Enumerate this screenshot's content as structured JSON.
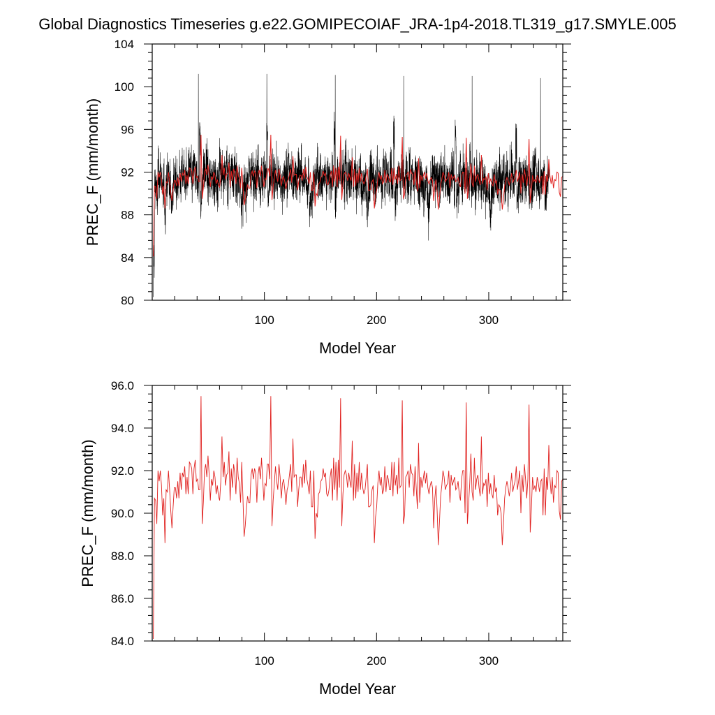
{
  "title": "Global Diagnostics Timeseries g.e22.GOMIPECOIAF_JRA-1p4-2018.TL319_g17.SMYLE.005",
  "colors": {
    "monthly": "#000000",
    "annual": "#e0201e",
    "axis": "#000000"
  },
  "chart_data": [
    {
      "type": "line",
      "title": "Global Diagnostics Timeseries g.e22.GOMIPECOIAF_JRA-1p4-2018.TL319_g17.SMYLE.005",
      "xlabel": "Model Year",
      "ylabel": "PREC_F (mm/month)",
      "xlim": [
        0,
        366
      ],
      "ylim": [
        80,
        104
      ],
      "xticks": [
        100,
        200,
        300
      ],
      "xtick_labels": [
        "100",
        "200",
        "300"
      ],
      "yticks": [
        80,
        84,
        88,
        92,
        96,
        100,
        104
      ],
      "ytick_labels": [
        "80",
        "84",
        "88",
        "92",
        "96",
        "100",
        "104"
      ],
      "grid": false,
      "legend": "none",
      "series": [
        {
          "values_source": "monthly",
          "value_range": [
            80.3,
            101.2
          ],
          "mean": 91.0,
          "spike_years": [
            41,
            102,
            163,
            224,
            285,
            346
          ],
          "spike_peaks": [
            101.2,
            101.2,
            101.1,
            101.0,
            101.0,
            100.8
          ]
        },
        {
          "values_source": "annual"
        }
      ]
    },
    {
      "type": "line",
      "xlabel": "Model Year",
      "ylabel": "PREC_F (mm/month)",
      "xlim": [
        0,
        366
      ],
      "ylim": [
        84,
        96
      ],
      "xticks": [
        100,
        200,
        300
      ],
      "xtick_labels": [
        "100",
        "200",
        "300"
      ],
      "yticks": [
        84,
        86,
        88,
        90,
        92,
        94,
        96
      ],
      "ytick_labels": [
        "84.0",
        "86.0",
        "88.0",
        "90.0",
        "92.0",
        "94.0",
        "96.0"
      ],
      "grid": false,
      "legend": "none",
      "series": [
        {
          "values_source": "annual",
          "x_start": 1,
          "x_end": 366,
          "values": [
            84.1,
            90.7,
            90.6,
            89.5,
            92.0,
            91.5,
            92.0,
            91.3,
            89.9,
            90.7,
            88.6,
            91.1,
            91.0,
            92.0,
            91.1,
            90.1,
            89.3,
            90.3,
            91.2,
            91.2,
            90.7,
            91.5,
            90.7,
            91.9,
            91.1,
            91.9,
            91.7,
            92.2,
            90.9,
            91.7,
            90.9,
            92.4,
            92.3,
            92.1,
            90.9,
            92.1,
            92.5,
            91.5,
            91.6,
            91.1,
            91.1,
            95.5,
            89.5,
            90.5,
            92.0,
            92.3,
            91.7,
            92.7,
            91.8,
            90.6,
            91.6,
            91.3,
            92.0,
            91.7,
            90.9,
            91.3,
            90.8,
            90.6,
            91.5,
            93.6,
            91.7,
            92.4,
            91.3,
            91.8,
            91.9,
            92.9,
            90.6,
            92.1,
            91.2,
            92.3,
            91.9,
            90.9,
            92.6,
            91.7,
            91.4,
            90.5,
            92.4,
            90.8,
            88.9,
            89.4,
            90.2,
            90.8,
            90.5,
            90.5,
            91.8,
            92.1,
            91.6,
            92.1,
            91.9,
            90.5,
            91.8,
            92.2,
            91.6,
            92.6,
            91.6,
            90.6,
            91.4,
            91.3,
            92.3,
            92.3,
            91.6,
            95.5,
            89.4,
            90.6,
            91.4,
            92.2,
            91.5,
            91.1,
            92.3,
            91.7,
            90.7,
            91.4,
            91.6,
            91.1,
            90.4,
            91.1,
            91.3,
            91.8,
            92.3,
            91.0,
            93.5,
            91.7,
            91.8,
            91.8,
            90.3,
            91.1,
            91.7,
            91.7,
            91.2,
            92.3,
            91.4,
            92.5,
            91.6,
            91.3,
            90.9,
            92.0,
            90.3,
            90.3,
            92.0,
            88.8,
            90.0,
            89.8,
            90.9,
            91.0,
            91.5,
            91.6,
            92.1,
            91.7,
            91.9,
            90.9,
            90.8,
            91.1,
            91.7,
            92.1,
            90.6,
            92.6,
            91.1,
            92.4,
            90.6,
            92.5,
            91.2,
            95.4,
            89.4,
            90.9,
            91.8,
            92.0,
            91.8,
            91.2,
            91.9,
            91.5,
            91.2,
            93.4,
            90.6,
            92.3,
            90.7,
            91.9,
            91.0,
            92.4,
            91.1,
            91.9,
            91.2,
            90.9,
            91.1,
            91.7,
            92.3,
            90.3,
            90.3,
            90.4,
            91.1,
            91.3,
            88.6,
            89.8,
            90.3,
            91.4,
            92.0,
            91.3,
            91.7,
            90.9,
            91.1,
            92.2,
            91.0,
            91.8,
            91.6,
            91.1,
            91.1,
            92.4,
            90.8,
            92.4,
            91.3,
            91.8,
            90.9,
            92.6,
            91.2,
            91.3,
            95.3,
            89.5,
            89.9,
            91.7,
            91.8,
            92.0,
            91.2,
            92.3,
            91.9,
            91.8,
            90.8,
            92.2,
            91.2,
            90.2,
            93.3,
            90.5,
            91.7,
            91.2,
            91.6,
            92.0,
            91.4,
            91.9,
            91.2,
            90.9,
            91.3,
            91.5,
            91.2,
            89.3,
            90.7,
            91.3,
            90.1,
            88.5,
            89.6,
            90.8,
            91.3,
            92.0,
            91.7,
            91.1,
            91.3,
            91.4,
            92.0,
            90.5,
            91.8,
            91.3,
            91.5,
            91.7,
            91.1,
            91.2,
            91.5,
            90.9,
            90.6,
            91.6,
            92.0,
            92.0,
            90.0,
            95.2,
            89.5,
            90.4,
            91.4,
            92.8,
            91.0,
            90.6,
            92.6,
            91.1,
            91.6,
            91.8,
            91.2,
            90.8,
            93.6,
            90.9,
            91.4,
            91.3,
            91.6,
            90.3,
            91.9,
            90.9,
            91.4,
            90.9,
            90.7,
            91.8,
            91.0,
            91.2,
            89.9,
            90.4,
            90.3,
            90.0,
            88.5,
            89.5,
            90.7,
            91.2,
            91.5,
            91.2,
            90.8,
            91.2,
            91.9,
            91.0,
            91.3,
            91.5,
            92.2,
            91.1,
            91.5,
            92.0,
            90.0,
            91.8,
            91.0,
            92.3,
            91.6,
            90.7,
            91.6,
            95.1,
            89.1,
            90.2,
            91.7,
            91.1,
            91.3,
            91.0,
            91.7,
            91.4,
            91.0,
            91.5,
            91.6,
            89.9,
            92.1,
            89.9,
            91.7,
            91.1,
            93.2,
            91.6,
            90.9,
            91.7,
            90.5,
            91.3,
            91.2,
            92.0,
            91.9,
            90.1,
            89.7,
            91.5,
            91.6
          ]
        }
      ]
    }
  ]
}
